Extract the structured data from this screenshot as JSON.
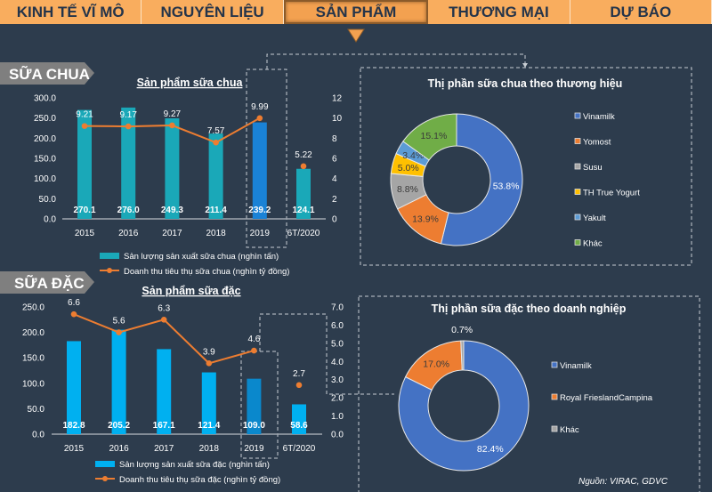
{
  "nav": {
    "tabs": [
      {
        "label": "KINH TẾ VĨ MÔ",
        "active": false
      },
      {
        "label": "NGUYÊN LIỆU",
        "active": false
      },
      {
        "label": "SẢN PHẨM",
        "active": true
      },
      {
        "label": "THƯƠNG MẠI",
        "active": false
      },
      {
        "label": "DỰ BÁO",
        "active": false
      }
    ]
  },
  "sections": {
    "yogurt": "SỮA CHUA",
    "condensed": "SỮA ĐẶC"
  },
  "source": "Nguồn: VIRAC, GDVC",
  "colors": {
    "nav": "#f9ad5e",
    "background": "#2d3c4d",
    "line": "#ed7d31"
  },
  "chart_data": [
    {
      "type": "bar",
      "title": "Sản phẩm sữa chua",
      "categories": [
        "2015",
        "2016",
        "2017",
        "2018",
        "2019",
        "6T/2020"
      ],
      "left_axis": {
        "ylim": [
          0,
          300
        ],
        "ticks": [
          "0.0",
          "50.0",
          "100.0",
          "150.0",
          "200.0",
          "250.0",
          "300.0"
        ]
      },
      "right_axis": {
        "ylim": [
          0,
          12
        ],
        "ticks": [
          "0",
          "2",
          "4",
          "6",
          "8",
          "10",
          "12"
        ]
      },
      "series": [
        {
          "name": "Sản lượng sản xuất sữa chua (nghìn tấn)",
          "type": "bar",
          "axis": "left",
          "values": [
            270.1,
            276.0,
            249.3,
            211.4,
            239.2,
            124.1
          ],
          "labels": [
            "270.1",
            "276.0",
            "249.3",
            "211.4",
            "239.2",
            "124.1"
          ],
          "color": "#1aa8b8",
          "highlight_color": "#1a82d6"
        },
        {
          "name": "Doanh thu tiêu thụ sữa chua (nghìn tỷ đồng)",
          "type": "line",
          "axis": "right",
          "values": [
            9.21,
            9.17,
            9.27,
            7.57,
            9.99,
            5.22
          ],
          "labels": [
            "9.21",
            "9.17",
            "9.27",
            "7.57",
            "9.99",
            "5.22"
          ],
          "color": "#ed7d31"
        }
      ],
      "highlighted_category": "2019",
      "grid": false
    },
    {
      "type": "pie",
      "title": "Thị phần sữa chua theo thương hiệu",
      "legend": "right",
      "slices": [
        {
          "name": "Vinamilk",
          "value": 53.8,
          "label": "53.8%",
          "color": "#4472c4"
        },
        {
          "name": "Yomost",
          "value": 13.9,
          "label": "13.9%",
          "color": "#ed7d31"
        },
        {
          "name": "Susu",
          "value": 8.8,
          "label": "8.8%",
          "color": "#a5a5a5"
        },
        {
          "name": "TH True Yogurt",
          "value": 5.0,
          "label": "5.0%",
          "color": "#ffc000"
        },
        {
          "name": "Yakult",
          "value": 3.4,
          "label": "3.4%",
          "color": "#5b9bd5"
        },
        {
          "name": "Khác",
          "value": 15.1,
          "label": "15.1%",
          "color": "#70ad47"
        }
      ]
    },
    {
      "type": "bar",
      "title": "Sản phẩm sữa đặc",
      "categories": [
        "2015",
        "2016",
        "2017",
        "2018",
        "2019",
        "6T/2020"
      ],
      "left_axis": {
        "ylim": [
          0,
          250
        ],
        "ticks": [
          "0.0",
          "50.0",
          "100.0",
          "150.0",
          "200.0",
          "250.0"
        ]
      },
      "right_axis": {
        "ylim": [
          0,
          7
        ],
        "ticks": [
          "0.0",
          "1.0",
          "2.0",
          "3.0",
          "4.0",
          "5.0",
          "6.0",
          "7.0"
        ]
      },
      "series": [
        {
          "name": "Sản lượng sản xuất sữa đặc (nghìn tấn)",
          "type": "bar",
          "axis": "left",
          "values": [
            182.8,
            205.2,
            167.1,
            121.4,
            109.0,
            58.6
          ],
          "labels": [
            "182.8",
            "205.2",
            "167.1",
            "121.4",
            "109.0",
            "58.6"
          ],
          "color": "#00b0f0",
          "highlight_color": "#0a88cc"
        },
        {
          "name": "Doanh thu tiêu thụ sữa đặc (nghìn tỷ đồng)",
          "type": "line",
          "axis": "right",
          "values": [
            6.6,
            5.6,
            6.3,
            3.9,
            4.6,
            2.7
          ],
          "labels": [
            "6.6",
            "5.6",
            "6.3",
            "3.9",
            "4.6",
            "2.7"
          ],
          "color": "#ed7d31"
        }
      ],
      "highlighted_category": "2019",
      "grid": false
    },
    {
      "type": "pie",
      "title": "Thị phần sữa đặc theo doanh nghiệp",
      "legend": "right",
      "slices": [
        {
          "name": "Vinamilk",
          "value": 82.4,
          "label": "82.4%",
          "color": "#4472c4"
        },
        {
          "name": "Royal FrieslandCampina",
          "value": 17.0,
          "label": "17.0%",
          "color": "#ed7d31"
        },
        {
          "name": "Khác",
          "value": 0.7,
          "label": "0.7%",
          "color": "#a5a5a5"
        }
      ]
    }
  ]
}
